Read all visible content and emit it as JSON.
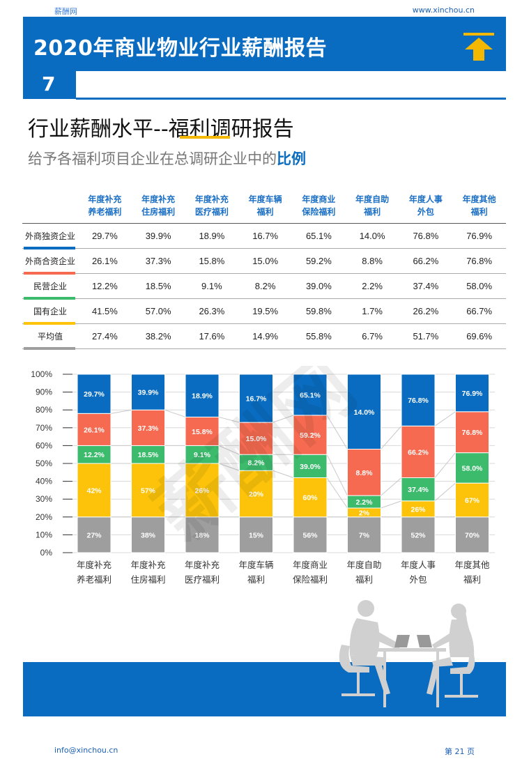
{
  "header": {
    "brand": "薪酬网",
    "url": "www.xinchou.cn",
    "title": "2020年商业物业行业薪酬报告",
    "chapter": "7"
  },
  "section": {
    "title": "行业薪酬水平--福利调研报告",
    "subtitle_prefix": "给予各福利项目企业在总调研企业中的",
    "subtitle_emphasis": "比例"
  },
  "colors": {
    "brand_blue": "#0a6cc0",
    "accent_yellow": "#f5b800",
    "series": [
      "#9e9e9e",
      "#fcc30a",
      "#3dbb6d",
      "#f56a50",
      "#0a6cc0"
    ]
  },
  "table": {
    "columns": [
      [
        "年度补充",
        "养老福利"
      ],
      [
        "年度补充",
        "住房福利"
      ],
      [
        "年度补充",
        "医疗福利"
      ],
      [
        "年度车辆",
        "福利"
      ],
      [
        "年度商业",
        "保险福利"
      ],
      [
        "年度自助",
        "福利"
      ],
      [
        "年度人事",
        "外包"
      ],
      [
        "年度其他",
        "福利"
      ]
    ],
    "rows": [
      {
        "label": "外商独资企业",
        "color": "#0a6cc0",
        "values": [
          "29.7%",
          "39.9%",
          "18.9%",
          "16.7%",
          "65.1%",
          "14.0%",
          "76.8%",
          "76.9%"
        ]
      },
      {
        "label": "外商合资企业",
        "color": "#f56a50",
        "values": [
          "26.1%",
          "37.3%",
          "15.8%",
          "15.0%",
          "59.2%",
          "8.8%",
          "66.2%",
          "76.8%"
        ]
      },
      {
        "label": "民营企业",
        "color": "#3dbb6d",
        "values": [
          "12.2%",
          "18.5%",
          "9.1%",
          "8.2%",
          "39.0%",
          "2.2%",
          "37.4%",
          "58.0%"
        ]
      },
      {
        "label": "国有企业",
        "color": "#fcc30a",
        "values": [
          "41.5%",
          "57.0%",
          "26.3%",
          "19.5%",
          "59.8%",
          "1.7%",
          "26.2%",
          "66.7%"
        ]
      },
      {
        "label": "平均值",
        "color": "#9e9e9e",
        "values": [
          "27.4%",
          "38.2%",
          "17.6%",
          "14.9%",
          "55.8%",
          "6.7%",
          "51.7%",
          "69.6%"
        ]
      }
    ]
  },
  "chart_data": {
    "type": "bar",
    "stacked": "100%",
    "categories": [
      [
        "年度补充",
        "养老福利"
      ],
      [
        "年度补充",
        "住房福利"
      ],
      [
        "年度补充",
        "医疗福利"
      ],
      [
        "年度车辆",
        "福利"
      ],
      [
        "年度商业",
        "保险福利"
      ],
      [
        "年度自助",
        "福利"
      ],
      [
        "年度人事",
        "外包"
      ],
      [
        "年度其他",
        "福利"
      ]
    ],
    "y_ticks": [
      "0%",
      "10%",
      "20%",
      "30%",
      "40%",
      "50%",
      "60%",
      "70%",
      "80%",
      "90%",
      "100%"
    ],
    "ylim": [
      0,
      100
    ],
    "series": [
      {
        "color": "#9e9e9e",
        "values": [
          20,
          20,
          20,
          20,
          20,
          20,
          20,
          20
        ],
        "labels": [
          "27%",
          "38%",
          "18%",
          "15%",
          "56%",
          "7%",
          "52%",
          "70%"
        ]
      },
      {
        "color": "#fcc30a",
        "values": [
          30,
          30,
          30,
          26,
          22,
          5,
          9,
          19
        ],
        "labels": [
          "42%",
          "57%",
          "26%",
          "20%",
          "60%",
          "2%",
          "26%",
          "67%"
        ]
      },
      {
        "color": "#3dbb6d",
        "values": [
          10,
          10,
          10,
          9,
          13,
          7,
          13,
          17
        ],
        "labels": [
          "12.2%",
          "18.5%",
          "9.1%",
          "8.2%",
          "39.0%",
          "2.2%",
          "37.4%",
          "58.0%"
        ]
      },
      {
        "color": "#f56a50",
        "values": [
          18,
          20,
          16,
          18,
          22,
          26,
          29,
          23
        ],
        "labels": [
          "26.1%",
          "37.3%",
          "15.8%",
          "15.0%",
          "59.2%",
          "8.8%",
          "66.2%",
          "76.8%"
        ]
      },
      {
        "color": "#0a6cc0",
        "values": [
          22,
          20,
          24,
          27,
          23,
          42,
          29,
          21
        ],
        "labels": [
          "29.7%",
          "39.9%",
          "18.9%",
          "16.7%",
          "65.1%",
          "14.0%",
          "76.8%",
          "76.9%"
        ]
      }
    ]
  },
  "watermark": "薪酬网",
  "footer": {
    "email": "info@xinchou.cn",
    "page": "第 21 页"
  }
}
